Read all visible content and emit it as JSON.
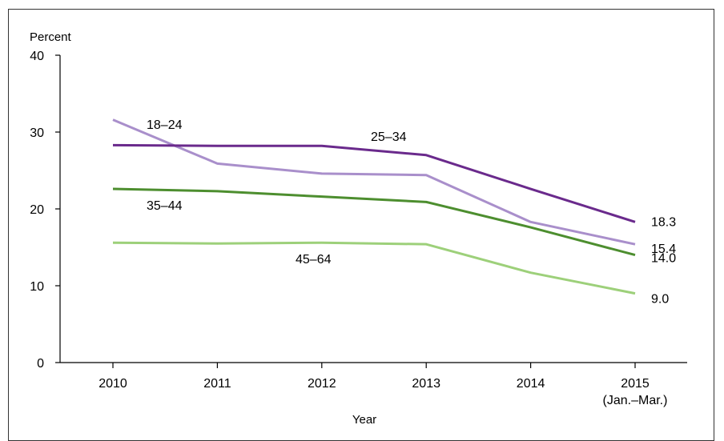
{
  "chart_data": {
    "type": "line",
    "title": "",
    "ylabel": "Percent",
    "xlabel": "Year",
    "ylim": [
      0,
      40
    ],
    "yticks": [
      0,
      10,
      20,
      30,
      40
    ],
    "categories": [
      "2010",
      "2011",
      "2012",
      "2013",
      "2014",
      "2015"
    ],
    "category_sublabels": [
      "",
      "",
      "",
      "",
      "",
      "(Jan.–Mar.)"
    ],
    "grid": false,
    "legend": "none",
    "series": [
      {
        "name": "18–24",
        "color": "#a98fcb",
        "values": [
          31.6,
          25.9,
          24.6,
          24.4,
          18.3,
          15.4
        ],
        "end_label": "15.4"
      },
      {
        "name": "25–34",
        "color": "#6a2a8c",
        "values": [
          28.3,
          28.2,
          28.2,
          27.0,
          22.6,
          18.3
        ],
        "end_label": "18.3"
      },
      {
        "name": "35–44",
        "color": "#4d8e2f",
        "values": [
          22.6,
          22.3,
          21.6,
          20.9,
          17.6,
          14.0
        ],
        "end_label": "14.0"
      },
      {
        "name": "45–64",
        "color": "#9dd07a",
        "values": [
          15.6,
          15.5,
          15.6,
          15.4,
          11.7,
          9.0
        ],
        "end_label": "9.0"
      }
    ]
  }
}
